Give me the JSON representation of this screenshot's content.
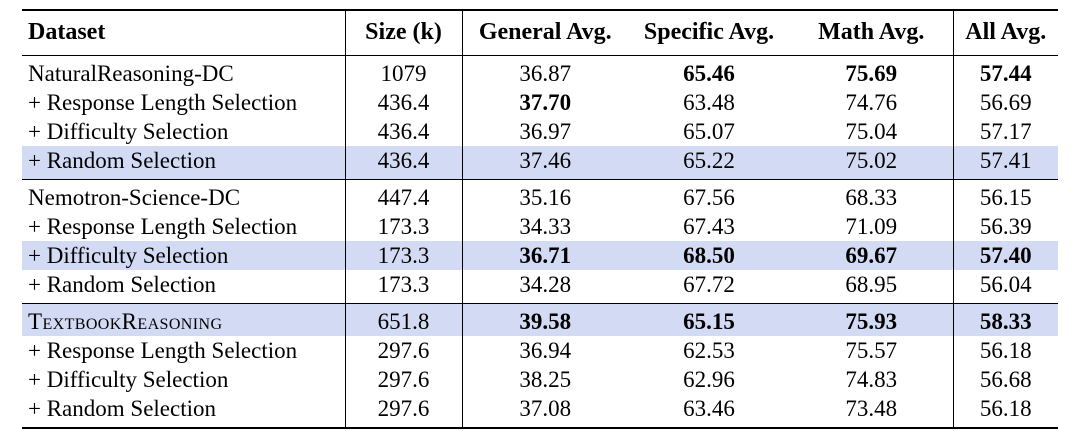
{
  "highlight_color": "#d3daf3",
  "table": {
    "columns": [
      {
        "id": "dataset",
        "label": "Dataset",
        "align": "left"
      },
      {
        "id": "size",
        "label": "Size (k)",
        "align": "center"
      },
      {
        "id": "general",
        "label": "General Avg.",
        "align": "center"
      },
      {
        "id": "specific",
        "label": "Specific Avg.",
        "align": "center"
      },
      {
        "id": "math",
        "label": "Math Avg.",
        "align": "center"
      },
      {
        "id": "all",
        "label": "All Avg.",
        "align": "center"
      }
    ],
    "sections": [
      {
        "rows": [
          {
            "dataset": "NaturalReasoning-DC",
            "smallcaps": false,
            "highlight": false,
            "values": [
              "1079",
              "36.87",
              "65.46",
              "75.69",
              "57.44"
            ],
            "bold": [
              false,
              false,
              true,
              true,
              true
            ]
          },
          {
            "dataset": "+ Response Length Selection",
            "smallcaps": false,
            "highlight": false,
            "values": [
              "436.4",
              "37.70",
              "63.48",
              "74.76",
              "56.69"
            ],
            "bold": [
              false,
              true,
              false,
              false,
              false
            ]
          },
          {
            "dataset": "+ Difficulty Selection",
            "smallcaps": false,
            "highlight": false,
            "values": [
              "436.4",
              "36.97",
              "65.07",
              "75.04",
              "57.17"
            ],
            "bold": [
              false,
              false,
              false,
              false,
              false
            ]
          },
          {
            "dataset": "+ Random Selection",
            "smallcaps": false,
            "highlight": true,
            "values": [
              "436.4",
              "37.46",
              "65.22",
              "75.02",
              "57.41"
            ],
            "bold": [
              false,
              false,
              false,
              false,
              false
            ]
          }
        ]
      },
      {
        "rows": [
          {
            "dataset": "Nemotron-Science-DC",
            "smallcaps": false,
            "highlight": false,
            "values": [
              "447.4",
              "35.16",
              "67.56",
              "68.33",
              "56.15"
            ],
            "bold": [
              false,
              false,
              false,
              false,
              false
            ]
          },
          {
            "dataset": "+ Response Length Selection",
            "smallcaps": false,
            "highlight": false,
            "values": [
              "173.3",
              "34.33",
              "67.43",
              "71.09",
              "56.39"
            ],
            "bold": [
              false,
              false,
              false,
              false,
              false
            ]
          },
          {
            "dataset": "+ Difficulty Selection",
            "smallcaps": false,
            "highlight": true,
            "values": [
              "173.3",
              "36.71",
              "68.50",
              "69.67",
              "57.40"
            ],
            "bold": [
              false,
              true,
              true,
              true,
              true
            ]
          },
          {
            "dataset": "+ Random Selection",
            "smallcaps": false,
            "highlight": false,
            "values": [
              "173.3",
              "34.28",
              "67.72",
              "68.95",
              "56.04"
            ],
            "bold": [
              false,
              false,
              false,
              false,
              false
            ]
          }
        ]
      },
      {
        "rows": [
          {
            "dataset": "TextbookReasoning",
            "smallcaps": true,
            "highlight": true,
            "values": [
              "651.8",
              "39.58",
              "65.15",
              "75.93",
              "58.33"
            ],
            "bold": [
              false,
              true,
              true,
              true,
              true
            ]
          },
          {
            "dataset": "+ Response Length Selection",
            "smallcaps": false,
            "highlight": false,
            "values": [
              "297.6",
              "36.94",
              "62.53",
              "75.57",
              "56.18"
            ],
            "bold": [
              false,
              false,
              false,
              false,
              false
            ]
          },
          {
            "dataset": "+ Difficulty Selection",
            "smallcaps": false,
            "highlight": false,
            "values": [
              "297.6",
              "38.25",
              "62.96",
              "74.83",
              "56.68"
            ],
            "bold": [
              false,
              false,
              false,
              false,
              false
            ]
          },
          {
            "dataset": "+ Random Selection",
            "smallcaps": false,
            "highlight": false,
            "values": [
              "297.6",
              "37.08",
              "63.46",
              "73.48",
              "56.18"
            ],
            "bold": [
              false,
              false,
              false,
              false,
              false
            ]
          }
        ]
      }
    ]
  }
}
